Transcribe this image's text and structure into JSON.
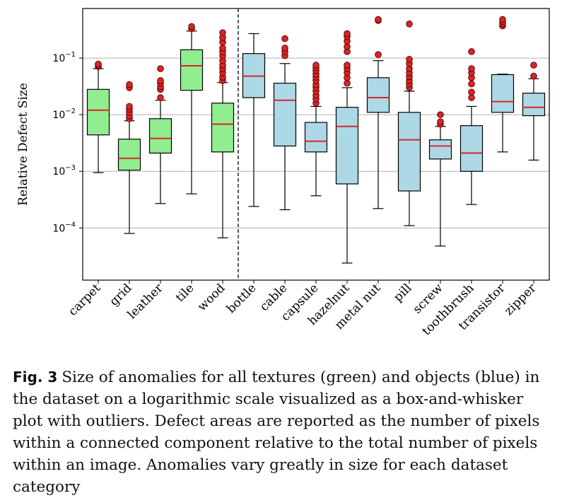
{
  "figure": {
    "label": "Fig. 3",
    "caption": "Size of anomalies for all textures (green) and objects (blue) in the dataset on a logarithmic scale visualized as a box-and-whisker plot with outliers. Defect areas are reported as the number of pixels within a connected component relative to the total number of pixels within an image. Anomalies vary greatly in size for each dataset category"
  },
  "chart_data": {
    "type": "box",
    "title": "",
    "xlabel": "",
    "ylabel": "Relative Defect Size",
    "yscale": "log",
    "ylim": [
      1.2e-05,
      0.75
    ],
    "yticks": [
      0.0001,
      0.001,
      0.01,
      0.1
    ],
    "ytick_labels": [
      {
        "base": "10",
        "exp": "−4"
      },
      {
        "base": "10",
        "exp": "−3"
      },
      {
        "base": "10",
        "exp": "−2"
      },
      {
        "base": "10",
        "exp": "−1"
      }
    ],
    "grid": "horizontal",
    "divider_after_index": 4,
    "colors": {
      "texture": "#90ee90",
      "object": "#add8e6",
      "median": "#d62728",
      "outlier": "#d62728",
      "outlier_edge": "#6b0000",
      "grid": "#b0b0b0"
    },
    "categories": [
      {
        "name": "carpet",
        "group": "texture",
        "whislo": 0.00095,
        "q1": 0.0044,
        "med": 0.012,
        "q3": 0.028,
        "whishi": 0.065,
        "fliers": [
          0.071,
          0.075,
          0.078
        ]
      },
      {
        "name": "grid",
        "group": "texture",
        "whislo": 8e-05,
        "q1": 0.00105,
        "med": 0.0017,
        "q3": 0.0037,
        "whishi": 0.0078,
        "fliers": [
          0.0085,
          0.0095,
          0.011,
          0.0125,
          0.014,
          0.03,
          0.034
        ]
      },
      {
        "name": "leather",
        "group": "texture",
        "whislo": 0.00027,
        "q1": 0.0021,
        "med": 0.0038,
        "q3": 0.0085,
        "whishi": 0.018,
        "fliers": [
          0.02,
          0.028,
          0.031,
          0.036,
          0.04,
          0.065
        ]
      },
      {
        "name": "tile",
        "group": "texture",
        "whislo": 0.0004,
        "q1": 0.027,
        "med": 0.073,
        "q3": 0.14,
        "whishi": 0.3,
        "fliers": [
          0.33,
          0.36
        ]
      },
      {
        "name": "wood",
        "group": "texture",
        "whislo": 6.7e-05,
        "q1": 0.0022,
        "med": 0.0068,
        "q3": 0.016,
        "whishi": 0.037,
        "fliers": [
          0.04,
          0.046,
          0.055,
          0.065,
          0.075,
          0.09,
          0.11,
          0.13,
          0.15,
          0.19,
          0.23,
          0.28
        ]
      },
      {
        "name": "bottle",
        "group": "object",
        "whislo": 0.00024,
        "q1": 0.02,
        "med": 0.048,
        "q3": 0.12,
        "whishi": 0.27,
        "fliers": []
      },
      {
        "name": "cable",
        "group": "object",
        "whislo": 0.00021,
        "q1": 0.0028,
        "med": 0.018,
        "q3": 0.036,
        "whishi": 0.08,
        "fliers": [
          0.11,
          0.13,
          0.15,
          0.22
        ]
      },
      {
        "name": "capsule",
        "group": "object",
        "whislo": 0.00037,
        "q1": 0.0022,
        "med": 0.0034,
        "q3": 0.0073,
        "whishi": 0.014,
        "fliers": [
          0.016,
          0.019,
          0.022,
          0.026,
          0.03,
          0.034,
          0.04,
          0.046,
          0.052,
          0.06,
          0.068,
          0.075
        ]
      },
      {
        "name": "hazelnut",
        "group": "object",
        "whislo": 2.4e-05,
        "q1": 0.0006,
        "med": 0.0062,
        "q3": 0.0135,
        "whishi": 0.03,
        "fliers": [
          0.036,
          0.045,
          0.055,
          0.065,
          0.075,
          0.13,
          0.16,
          0.2,
          0.24,
          0.27
        ]
      },
      {
        "name": "metal nut",
        "group": "object",
        "whislo": 0.00022,
        "q1": 0.011,
        "med": 0.02,
        "q3": 0.045,
        "whishi": 0.09,
        "fliers": [
          0.115,
          0.46,
          0.48
        ]
      },
      {
        "name": "pill",
        "group": "object",
        "whislo": 0.00011,
        "q1": 0.00045,
        "med": 0.0036,
        "q3": 0.011,
        "whishi": 0.026,
        "fliers": [
          0.03,
          0.035,
          0.04,
          0.047,
          0.055,
          0.065,
          0.08,
          0.095,
          0.4
        ]
      },
      {
        "name": "screw",
        "group": "object",
        "whislo": 4.8e-05,
        "q1": 0.00165,
        "med": 0.0028,
        "q3": 0.0036,
        "whishi": 0.0062,
        "fliers": [
          0.0068,
          0.0075,
          0.01
        ]
      },
      {
        "name": "toothbrush",
        "group": "object",
        "whislo": 0.00026,
        "q1": 0.001,
        "med": 0.0021,
        "q3": 0.0064,
        "whishi": 0.014,
        "fliers": [
          0.02,
          0.025,
          0.035,
          0.045,
          0.055,
          0.065,
          0.13
        ]
      },
      {
        "name": "transistor",
        "group": "object",
        "whislo": 0.0022,
        "q1": 0.011,
        "med": 0.017,
        "q3": 0.051,
        "whishi": 0.052,
        "fliers": [
          0.37,
          0.4,
          0.44,
          0.48
        ]
      },
      {
        "name": "zipper",
        "group": "object",
        "whislo": 0.00158,
        "q1": 0.0096,
        "med": 0.0135,
        "q3": 0.024,
        "whishi": 0.043,
        "fliers": [
          0.048,
          0.075
        ]
      }
    ]
  }
}
